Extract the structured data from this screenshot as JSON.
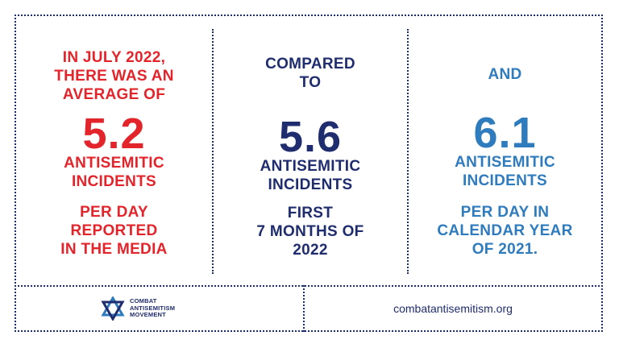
{
  "col1": {
    "intro": [
      "IN JULY 2022,",
      "THERE WAS AN",
      "AVERAGE OF"
    ],
    "number": "5.2",
    "label": [
      "ANTISEMITIC",
      "INCIDENTS"
    ],
    "detail": [
      "PER DAY",
      "REPORTED",
      "IN THE MEDIA"
    ]
  },
  "col2": {
    "intro": [
      "COMPARED",
      "TO"
    ],
    "number": "5.6",
    "label": [
      "ANTISEMITIC",
      "INCIDENTS"
    ],
    "detail": [
      "FIRST",
      "7 MONTHS OF",
      "2022"
    ]
  },
  "col3": {
    "intro": [
      "AND"
    ],
    "number": "6.1",
    "label": [
      "ANTISEMITIC",
      "INCIDENTS"
    ],
    "detail": [
      "PER DAY IN",
      "CALENDAR YEAR",
      "OF 2021."
    ]
  },
  "footer": {
    "logo_lines": [
      "COMBAT",
      "ANTISEMITISM",
      "MOVEMENT"
    ],
    "logo_icon": "star-of-david-icon",
    "url": "combatantisemitism.org"
  },
  "colors": {
    "red": "#e3242b",
    "navy": "#1f2c6e",
    "blue": "#2e7bbd"
  }
}
